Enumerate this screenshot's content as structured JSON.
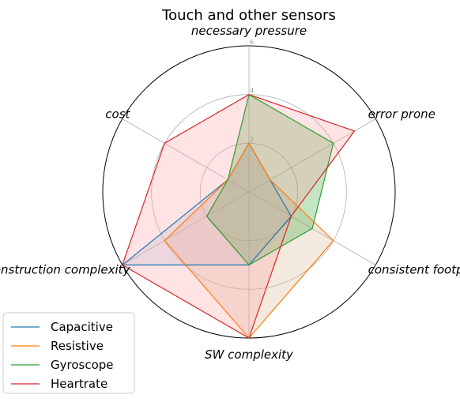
{
  "chart_data": {
    "type": "radar",
    "title": "Touch and other sensors",
    "axes": [
      "necessary pressure",
      "error prone",
      "consistent footprint",
      "SW complexity",
      "construction complexity",
      "cost"
    ],
    "rlim": [
      0,
      6
    ],
    "rticks": [
      2,
      4,
      6
    ],
    "grid": true,
    "legend_position": "bottom-left",
    "series": [
      {
        "name": "Capacitive",
        "color": "#1f77b4",
        "values": [
          2,
          1,
          2,
          3,
          6,
          1
        ]
      },
      {
        "name": "Resistive",
        "color": "#ff7f0e",
        "values": [
          2,
          1,
          4,
          6,
          4,
          1
        ]
      },
      {
        "name": "Gyroscope",
        "color": "#2ca02c",
        "values": [
          4,
          4,
          3,
          3,
          2,
          1
        ]
      },
      {
        "name": "Heartrate",
        "color": "#d62728",
        "values": [
          4,
          5,
          2,
          6,
          6,
          4
        ]
      }
    ],
    "fill_colors": {
      "Resistive": "#d8b08a",
      "Gyroscope": "#2ca02c",
      "Heartrate": "#ff9aa2",
      "Capacitive": "#a9c0dc"
    }
  }
}
